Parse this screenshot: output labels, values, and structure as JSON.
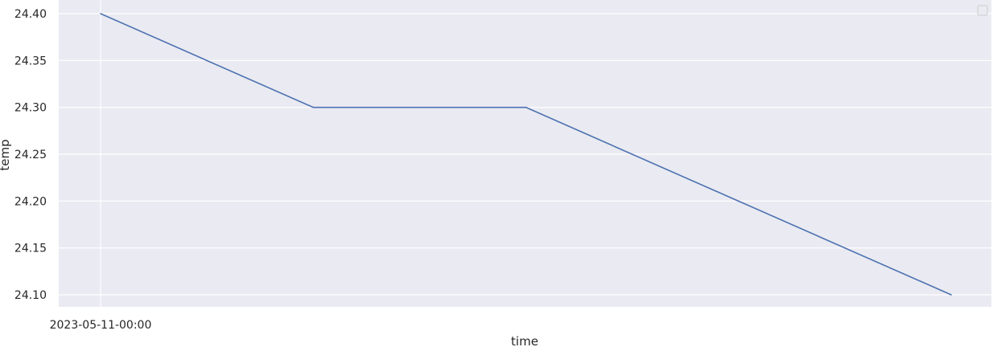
{
  "chart_data": {
    "type": "line",
    "xlabel": "time",
    "ylabel": "temp",
    "x_tick_labels": [
      "2023-05-11-00:00"
    ],
    "x": [
      0,
      1,
      2,
      3,
      4
    ],
    "series": [
      {
        "values": [
          24.4,
          24.3,
          24.3,
          24.2,
          24.1
        ]
      }
    ],
    "ylim": [
      24.087,
      24.401
    ],
    "yticks": [
      24.1,
      24.15,
      24.2,
      24.25,
      24.3,
      24.35,
      24.4
    ],
    "ytick_labels": [
      "24.10",
      "24.15",
      "24.20",
      "24.25",
      "24.30",
      "24.35",
      "24.40"
    ],
    "grid": true,
    "legend": "top-right (empty)",
    "colors": {
      "line": "#4c72b0",
      "plot_background": "#eaeaf2",
      "grid": "#ffffff"
    }
  }
}
